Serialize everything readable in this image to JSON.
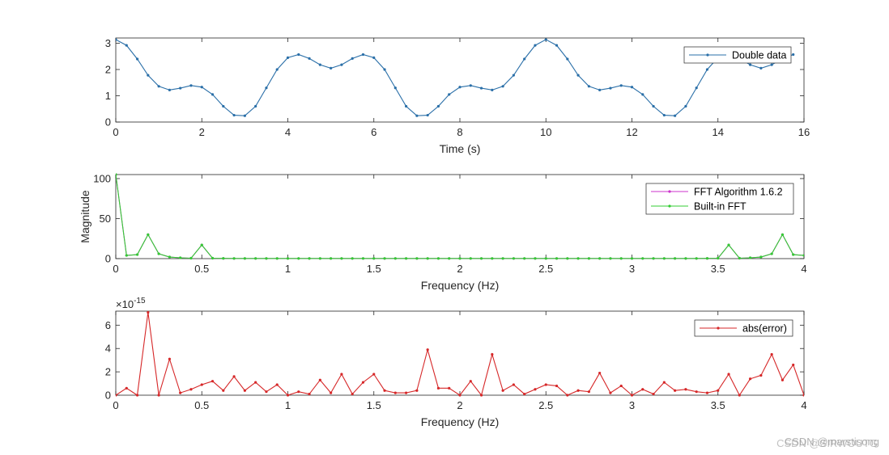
{
  "chart_data": [
    {
      "type": "line",
      "xlabel": "Time (s)",
      "ylabel": "",
      "xlim": [
        0,
        16
      ],
      "ylim": [
        0,
        3.2
      ],
      "xticks": [
        0,
        2,
        4,
        6,
        8,
        10,
        12,
        14,
        16
      ],
      "yticks": [
        0,
        1,
        2,
        3
      ],
      "grid": false,
      "legend": "top-right",
      "series": [
        {
          "name": "Double data",
          "color": "#2a6fa8",
          "x": [
            0,
            0.25,
            0.5,
            0.75,
            1,
            1.25,
            1.5,
            1.75,
            2,
            2.25,
            2.5,
            2.75,
            3,
            3.25,
            3.5,
            3.75,
            4,
            4.25,
            4.5,
            4.75,
            5,
            5.25,
            5.5,
            5.75,
            6,
            6.25,
            6.5,
            6.75,
            7,
            7.25,
            7.5,
            7.75,
            8,
            8.25,
            8.5,
            8.75,
            9,
            9.25,
            9.5,
            9.75,
            10,
            10.25,
            10.5,
            10.75,
            11,
            11.25,
            11.5,
            11.75,
            12,
            12.25,
            12.5,
            12.75,
            13,
            13.25,
            13.5,
            13.75,
            14,
            14.25,
            14.5,
            14.75,
            15,
            15.25,
            15.5,
            15.75
          ],
          "y": [
            3.14,
            2.92,
            2.4,
            1.78,
            1.36,
            1.22,
            1.29,
            1.39,
            1.33,
            1.05,
            0.6,
            0.26,
            0.24,
            0.6,
            1.3,
            2.0,
            2.45,
            2.57,
            2.42,
            2.18,
            2.05,
            2.18,
            2.42,
            2.57,
            2.45,
            2.0,
            1.3,
            0.6,
            0.24,
            0.26,
            0.6,
            1.05,
            1.33,
            1.39,
            1.29,
            1.22,
            1.36,
            1.78,
            2.4,
            2.92,
            3.14,
            2.92,
            2.4,
            1.78,
            1.36,
            1.22,
            1.29,
            1.39,
            1.33,
            1.05,
            0.6,
            0.26,
            0.24,
            0.6,
            1.3,
            2.0,
            2.45,
            2.57,
            2.42,
            2.18,
            2.05,
            2.18,
            2.42,
            2.57
          ]
        }
      ]
    },
    {
      "type": "line",
      "xlabel": "Frequency (Hz)",
      "ylabel": "Magnitude",
      "xlim": [
        0,
        4
      ],
      "ylim": [
        0,
        105
      ],
      "xticks": [
        0,
        0.5,
        1,
        1.5,
        2,
        2.5,
        3,
        3.5,
        4
      ],
      "yticks": [
        0,
        50,
        100
      ],
      "grid": false,
      "legend": "top-right",
      "series": [
        {
          "name": "FFT Algorithm 1.6.2",
          "color": "#cc33cc",
          "x": [
            0,
            0.0625,
            0.125,
            0.1875,
            0.25,
            0.3125,
            0.375,
            0.4375,
            0.5,
            0.5625,
            0.625,
            0.6875,
            0.75,
            0.8125,
            0.875,
            0.9375,
            1,
            1.0625,
            1.125,
            1.1875,
            1.25,
            1.3125,
            1.375,
            1.4375,
            1.5,
            1.5625,
            1.625,
            1.6875,
            1.75,
            1.8125,
            1.875,
            1.9375,
            2,
            2.0625,
            2.125,
            2.1875,
            2.25,
            2.3125,
            2.375,
            2.4375,
            2.5,
            2.5625,
            2.625,
            2.6875,
            2.75,
            2.8125,
            2.875,
            2.9375,
            3,
            3.0625,
            3.125,
            3.1875,
            3.25,
            3.3125,
            3.375,
            3.4375,
            3.5,
            3.5625,
            3.625,
            3.6875,
            3.75,
            3.8125,
            3.875,
            3.9375,
            4
          ],
          "y": [
            105,
            4,
            5,
            30,
            6,
            2,
            1,
            0.5,
            17,
            0.5,
            0.3,
            0.2,
            0.2,
            0.2,
            0.2,
            0.2,
            0.2,
            0.2,
            0.2,
            0.2,
            0.2,
            0.2,
            0.2,
            0.2,
            0.2,
            0.2,
            0.2,
            0.2,
            0.2,
            0.2,
            0.2,
            0.2,
            0.2,
            0.2,
            0.2,
            0.2,
            0.2,
            0.2,
            0.2,
            0.2,
            0.2,
            0.2,
            0.2,
            0.2,
            0.2,
            0.2,
            0.2,
            0.2,
            0.2,
            0.2,
            0.2,
            0.2,
            0.2,
            0.2,
            0.2,
            0.3,
            0.5,
            17,
            0.5,
            1,
            2,
            6,
            30,
            5,
            4
          ]
        },
        {
          "name": "Built-in FFT",
          "color": "#33cc33",
          "x": [
            0,
            0.0625,
            0.125,
            0.1875,
            0.25,
            0.3125,
            0.375,
            0.4375,
            0.5,
            0.5625,
            0.625,
            0.6875,
            0.75,
            0.8125,
            0.875,
            0.9375,
            1,
            1.0625,
            1.125,
            1.1875,
            1.25,
            1.3125,
            1.375,
            1.4375,
            1.5,
            1.5625,
            1.625,
            1.6875,
            1.75,
            1.8125,
            1.875,
            1.9375,
            2,
            2.0625,
            2.125,
            2.1875,
            2.25,
            2.3125,
            2.375,
            2.4375,
            2.5,
            2.5625,
            2.625,
            2.6875,
            2.75,
            2.8125,
            2.875,
            2.9375,
            3,
            3.0625,
            3.125,
            3.1875,
            3.25,
            3.3125,
            3.375,
            3.4375,
            3.5,
            3.5625,
            3.625,
            3.6875,
            3.75,
            3.8125,
            3.875,
            3.9375,
            4
          ],
          "y": [
            105,
            4,
            5,
            30,
            6,
            2,
            1,
            0.5,
            17,
            0.5,
            0.3,
            0.2,
            0.2,
            0.2,
            0.2,
            0.2,
            0.2,
            0.2,
            0.2,
            0.2,
            0.2,
            0.2,
            0.2,
            0.2,
            0.2,
            0.2,
            0.2,
            0.2,
            0.2,
            0.2,
            0.2,
            0.2,
            0.2,
            0.2,
            0.2,
            0.2,
            0.2,
            0.2,
            0.2,
            0.2,
            0.2,
            0.2,
            0.2,
            0.2,
            0.2,
            0.2,
            0.2,
            0.2,
            0.2,
            0.2,
            0.2,
            0.2,
            0.2,
            0.2,
            0.2,
            0.3,
            0.5,
            17,
            0.5,
            1,
            2,
            6,
            30,
            5,
            4
          ]
        }
      ]
    },
    {
      "type": "line",
      "xlabel": "Frequency (Hz)",
      "ylabel": "",
      "xlim": [
        0,
        4
      ],
      "ylim": [
        0,
        7.2
      ],
      "xticks": [
        0,
        0.5,
        1,
        1.5,
        2,
        2.5,
        3,
        3.5,
        4
      ],
      "yticks": [
        0,
        2,
        4,
        6
      ],
      "yexponent_base": "10",
      "yexponent": "-15",
      "grid": false,
      "legend": "top-right",
      "series": [
        {
          "name": "abs(error)",
          "color": "#d62728",
          "x": [
            0,
            0.0625,
            0.125,
            0.1875,
            0.25,
            0.3125,
            0.375,
            0.4375,
            0.5,
            0.5625,
            0.625,
            0.6875,
            0.75,
            0.8125,
            0.875,
            0.9375,
            1,
            1.0625,
            1.125,
            1.1875,
            1.25,
            1.3125,
            1.375,
            1.4375,
            1.5,
            1.5625,
            1.625,
            1.6875,
            1.75,
            1.8125,
            1.875,
            1.9375,
            2,
            2.0625,
            2.125,
            2.1875,
            2.25,
            2.3125,
            2.375,
            2.4375,
            2.5,
            2.5625,
            2.625,
            2.6875,
            2.75,
            2.8125,
            2.875,
            2.9375,
            3,
            3.0625,
            3.125,
            3.1875,
            3.25,
            3.3125,
            3.375,
            3.4375,
            3.5,
            3.5625,
            3.625,
            3.6875,
            3.75,
            3.8125,
            3.875,
            3.9375,
            4
          ],
          "y": [
            0,
            0.6,
            0,
            7.1,
            0,
            3.1,
            0.2,
            0.5,
            0.9,
            1.2,
            0.4,
            1.6,
            0.4,
            1.1,
            0.3,
            0.9,
            0,
            0.3,
            0.1,
            1.3,
            0.2,
            1.8,
            0.1,
            1.1,
            1.8,
            0.4,
            0.2,
            0.2,
            0.4,
            3.9,
            0.6,
            0.6,
            0,
            1.2,
            0,
            3.5,
            0.4,
            0.9,
            0.1,
            0.5,
            0.9,
            0.8,
            0,
            0.4,
            0.3,
            1.9,
            0.2,
            0.8,
            0,
            0.5,
            0.1,
            1.1,
            0.4,
            0.5,
            0.3,
            0.2,
            0.4,
            1.8,
            0,
            1.4,
            1.7,
            3.5,
            1.3,
            2.6,
            0
          ]
        }
      ]
    }
  ],
  "watermark": {
    "text_a": "CSDN @marstisong",
    "text_b": "CSDN @SIRWOUTG"
  }
}
